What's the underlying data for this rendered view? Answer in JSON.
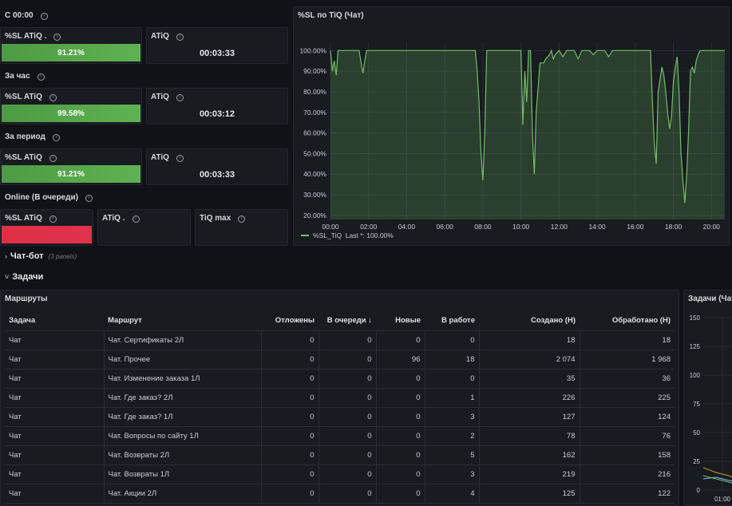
{
  "today": {
    "section_title": "С 00:00",
    "sl": {
      "label": "%SL ATiQ .",
      "value": "91.21%",
      "fraction": 0.9121
    },
    "atiq": {
      "label": "ATiQ",
      "value": "00:03:33"
    }
  },
  "hour": {
    "section_title": "За час",
    "sl": {
      "label": "%SL ATiQ",
      "value": "99.58%",
      "fraction": 0.9958
    },
    "atiq": {
      "label": "ATiQ",
      "value": "00:03:12"
    }
  },
  "period": {
    "section_title": "За период",
    "sl": {
      "label": "%SL ATiQ",
      "value": "91.21%",
      "fraction": 0.9121
    },
    "atiq": {
      "label": "ATiQ",
      "value": "00:03:33"
    }
  },
  "online": {
    "section_title": "Online (В очереди)",
    "sl": {
      "label": "%SL ATiQ",
      "value": "",
      "color": "#e02f44"
    },
    "atiq": {
      "label": "ATiQ ."
    },
    "tiqmax": {
      "label": "TiQ max"
    }
  },
  "colors": {
    "ok": "#56a64b",
    "bad": "#e02f44",
    "line": "#73bf69"
  },
  "chart_data": {
    "type": "area",
    "title": "%SL по TiQ (Чат)",
    "xlabel": "",
    "ylabel": "",
    "x_ticks": [
      "00:00",
      "02:00",
      "04:00",
      "06:00",
      "08:00",
      "10:00",
      "12:00",
      "14:00",
      "16:00",
      "18:00",
      "20:00"
    ],
    "y_ticks": [
      "20.00%",
      "30.00%",
      "40.00%",
      "50.00%",
      "60.00%",
      "70.00%",
      "80.00%",
      "90.00%",
      "100.00%"
    ],
    "ylim": [
      18,
      104
    ],
    "xlim": [
      0,
      20.7
    ],
    "grid": true,
    "legend": {
      "placement": "bottom-left",
      "label": "%SL_TiQ",
      "last_label": "Last *:",
      "last_value": "100.00%"
    },
    "series": [
      {
        "name": "%SL_TiQ",
        "x": [
          0,
          0.1,
          0.2,
          0.3,
          0.4,
          0.6,
          1.0,
          1.5,
          1.7,
          1.8,
          1.9,
          2.2,
          3.0,
          4.0,
          5.0,
          6.0,
          7.0,
          7.6,
          7.7,
          7.8,
          7.9,
          8.0,
          8.1,
          8.2,
          8.4,
          9.0,
          9.5,
          9.8,
          10.0,
          10.1,
          10.2,
          10.3,
          10.4,
          10.5,
          10.6,
          10.7,
          10.8,
          11.0,
          11.2,
          11.3,
          11.4,
          11.5,
          11.6,
          11.7,
          11.8,
          12.0,
          12.2,
          12.4,
          12.6,
          12.8,
          13.0,
          13.2,
          13.4,
          13.6,
          13.8,
          14.0,
          14.2,
          14.4,
          14.6,
          14.8,
          15.0,
          15.2,
          15.4,
          15.6,
          16.0,
          16.4,
          16.6,
          16.8,
          16.9,
          17.0,
          17.1,
          17.2,
          17.4,
          17.5,
          17.6,
          17.7,
          17.8,
          17.9,
          18.0,
          18.1,
          18.2,
          18.3,
          18.4,
          18.5,
          18.6,
          18.7,
          18.8,
          18.9,
          19.0,
          19.1,
          19.2,
          19.3,
          19.4,
          19.5,
          19.8,
          20.0,
          20.7
        ],
        "values": [
          100,
          90,
          95,
          88,
          100,
          100,
          100,
          100,
          89,
          95,
          100,
          100,
          100,
          100,
          100,
          100,
          100,
          100,
          90,
          75,
          50,
          37,
          60,
          100,
          100,
          100,
          100,
          100,
          100,
          64,
          90,
          75,
          100,
          100,
          60,
          40,
          70,
          94,
          94,
          96,
          97,
          98,
          100,
          96,
          98,
          100,
          97,
          100,
          100,
          100,
          96,
          100,
          100,
          100,
          98,
          100,
          100,
          100,
          97,
          100,
          100,
          100,
          100,
          100,
          100,
          100,
          100,
          100,
          75,
          55,
          45,
          80,
          92,
          88,
          80,
          70,
          62,
          68,
          85,
          92,
          97,
          80,
          50,
          37,
          26,
          40,
          62,
          90,
          92,
          89,
          95,
          98,
          100,
          100,
          100,
          100,
          100
        ]
      }
    ]
  },
  "chatbot_row": {
    "title": "Чат-бот",
    "subtitle": "(3 panels)"
  },
  "tasks_row": {
    "title": "Задачи"
  },
  "routes": {
    "title": "Маршруты",
    "columns": [
      "Задача",
      "Маршрут",
      "Отложены",
      "В очереди ↓",
      "Новые",
      "В работе",
      "Создано (Н)",
      "Обработано (Н)"
    ],
    "rows": [
      [
        "Чат",
        "Чат. Сертификаты 2Л",
        "0",
        "0",
        "0",
        "0",
        "18",
        "18"
      ],
      [
        "Чат",
        "Чат. Прочее",
        "0",
        "0",
        "96",
        "18",
        "2 074",
        "1 968"
      ],
      [
        "Чат",
        "Чат. Изменение заказа 1Л",
        "0",
        "0",
        "0",
        "0",
        "35",
        "36"
      ],
      [
        "Чат",
        "Чат. Где заказ? 2Л",
        "0",
        "0",
        "0",
        "1",
        "226",
        "225"
      ],
      [
        "Чат",
        "Чат. Где заказ? 1Л",
        "0",
        "0",
        "0",
        "3",
        "127",
        "124"
      ],
      [
        "Чат",
        "Чат. Вопросы по сайту 1Л",
        "0",
        "0",
        "0",
        "2",
        "78",
        "76"
      ],
      [
        "Чат",
        "Чат. Возвраты 2Л",
        "0",
        "0",
        "0",
        "5",
        "162",
        "158"
      ],
      [
        "Чат",
        "Чат. Возвраты 1Л",
        "0",
        "0",
        "0",
        "3",
        "219",
        "216"
      ],
      [
        "Чат",
        "Чат. Акции 2Л",
        "0",
        "0",
        "0",
        "4",
        "125",
        "122"
      ]
    ]
  },
  "tasks_chart": {
    "title": "Задачи (Чат",
    "y_ticks": [
      "150",
      "125",
      "100",
      "75",
      "50",
      "25",
      "0"
    ],
    "x_ticks": [
      "01:00"
    ]
  }
}
